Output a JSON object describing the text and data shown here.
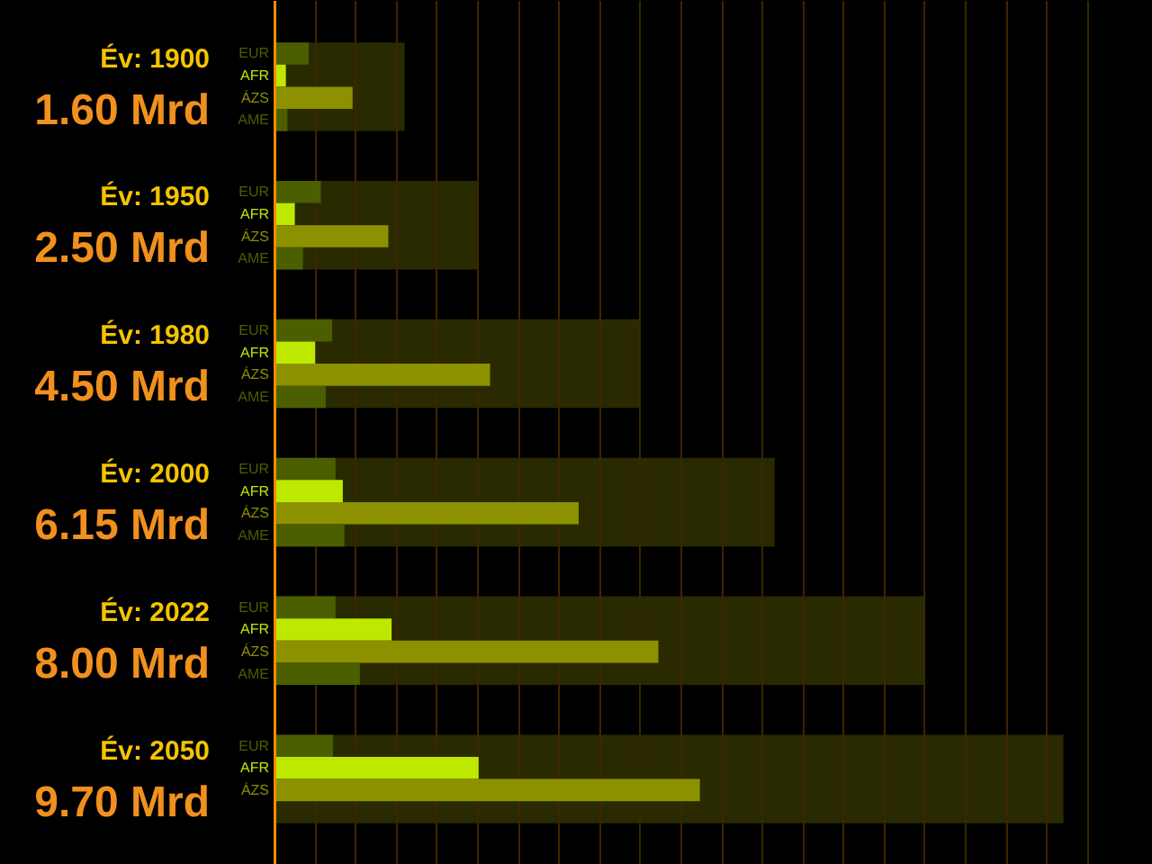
{
  "chart_data": {
    "type": "bar",
    "orientation": "horizontal",
    "categories": [
      "Év: 1900",
      "Év: 1950",
      "Év: 1980",
      "Év: 2000",
      "Év: 2022",
      "Év: 2050"
    ],
    "series": [
      {
        "color": "#2a2a00",
        "values": [
          1.6,
          2.5,
          4.5,
          6.15,
          8.0,
          9.7
        ],
        "value_labels": [
          "1.60 Mrd",
          "2.50 Mrd",
          "4.50 Mrd",
          "6.15 Mrd",
          "8.00 Mrd",
          "9.70 Mrd"
        ]
      },
      {
        "name": "EUR",
        "color": "#4b5e00",
        "values": [
          0.42,
          0.57,
          0.71,
          0.75,
          0.75,
          0.72
        ]
      },
      {
        "name": "AFR",
        "color": "#bde900",
        "values": [
          0.14,
          0.25,
          0.5,
          0.84,
          1.44,
          2.51
        ]
      },
      {
        "name": "ÁZS",
        "color": "#8c9100",
        "values": [
          0.96,
          1.4,
          2.65,
          3.74,
          4.72,
          5.23
        ]
      },
      {
        "name": "AME",
        "color": "#4b5e00",
        "values": [
          0.16,
          0.35,
          0.63,
          0.86,
          1.05,
          null
        ]
      }
    ],
    "xlim": [
      0,
      10.8
    ],
    "xticks": [
      {
        "value": 0.5,
        "label": null
      },
      {
        "value": 1,
        "label": null
      },
      {
        "value": 1.5,
        "label": null
      },
      {
        "value": 2,
        "label": null
      },
      {
        "value": 2.5,
        "label": null
      },
      {
        "value": 3,
        "label": null
      },
      {
        "value": 3.5,
        "label": null
      },
      {
        "value": 4,
        "label": null
      },
      {
        "value": 4.5,
        "label": null
      },
      {
        "value": 5,
        "label": null
      },
      {
        "value": 5.5,
        "label": null
      },
      {
        "value": 6,
        "label": null
      },
      {
        "value": 6.5,
        "label": null
      },
      {
        "value": 7,
        "label": null
      },
      {
        "value": 7.5,
        "label": null
      },
      {
        "value": 8,
        "label": null
      },
      {
        "value": 8.5,
        "label": null
      },
      {
        "value": 9,
        "label": null
      },
      {
        "value": 9.5,
        "label": null
      },
      {
        "value": 10,
        "label": null
      }
    ],
    "grid": "x",
    "tick_labels": "y"
  }
}
